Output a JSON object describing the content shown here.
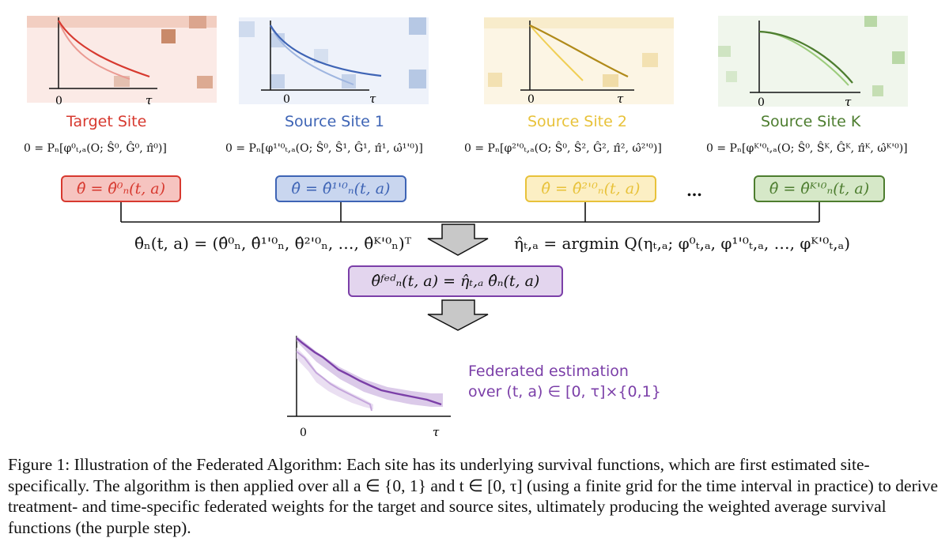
{
  "colors": {
    "target": "#d7392f",
    "source1": "#3e64b5",
    "source2": "#e8c23a",
    "sourceK": "#4d7d2f",
    "fed": "#7b3fa8",
    "arrow_fill": "#c8c8c8"
  },
  "sites": [
    {
      "title": "Target Site",
      "equation": "0 = Pₙ[φ⁰ₜ,ₐ(O; Ŝ⁰, Ĝ⁰, π̂⁰)]",
      "estimate": "θ̂ = θ̂⁰ₙ(t, a)",
      "axis_zero": "0",
      "axis_tau": "τ"
    },
    {
      "title": "Source Site 1",
      "equation": "0 = Pₙ[φ¹'⁰ₜ,ₐ(O; Ŝ⁰, Ŝ¹, Ĝ¹, π̂¹, ω̂¹'⁰)]",
      "estimate": "θ̂ = θ̂¹'⁰ₙ(t, a)",
      "axis_zero": "0",
      "axis_tau": "τ"
    },
    {
      "title": "Source Site 2",
      "equation": "0 = Pₙ[φ²'⁰ₜ,ₐ(O; Ŝ⁰, Ŝ², Ĝ², π̂², ω̂²'⁰)]",
      "estimate": "θ̂ = θ̂²'⁰ₙ(t, a)",
      "axis_zero": "0",
      "axis_tau": "τ"
    },
    {
      "title": "Source Site K",
      "equation": "0 = Pₙ[φᴷ'⁰ₜ,ₐ(O; Ŝ⁰, Ŝᴷ, Ĝᴷ, π̂ᴷ, ω̂ᴷ'⁰)]",
      "estimate": "θ̂ = θ̂ᴷ'⁰ₙ(t, a)",
      "axis_zero": "0",
      "axis_tau": "τ"
    }
  ],
  "ellipsis": "…",
  "theta_vector": "θ̂ₙ(t, a) = (θ̂⁰ₙ, θ̂¹'⁰ₙ, θ̂²'⁰ₙ, …, θ̂ᴷ'⁰ₙ)ᵀ",
  "eta_equation": "η̂ₜ,ₐ = argmin Q(ηₜ,ₐ; φ⁰ₜ,ₐ, φ¹'⁰ₜ,ₐ, …, φᴷ'⁰ₜ,ₐ)",
  "fed_box": "θ̂ᶠᵉᵈₙ(t, a) = η̂ₜ,ₐ θ̂ₙ(t, a)",
  "fed_label_line1": "Federated estimation",
  "fed_label_line2": "over (t, a) ∈ [0, τ]×{0,1}",
  "fed_axis_zero": "0",
  "fed_axis_tau": "τ",
  "caption": "Figure 1: Illustration of the Federated Algorithm: Each site has its underlying survival functions, which are first estimated site-specifically. The algorithm is then applied over all a ∈ {0, 1} and t ∈ [0, τ] (using a finite grid for the time interval in practice) to derive treatment- and time-specific federated weights for the target and source sites, ultimately producing the weighted average survival functions (the purple step)."
}
